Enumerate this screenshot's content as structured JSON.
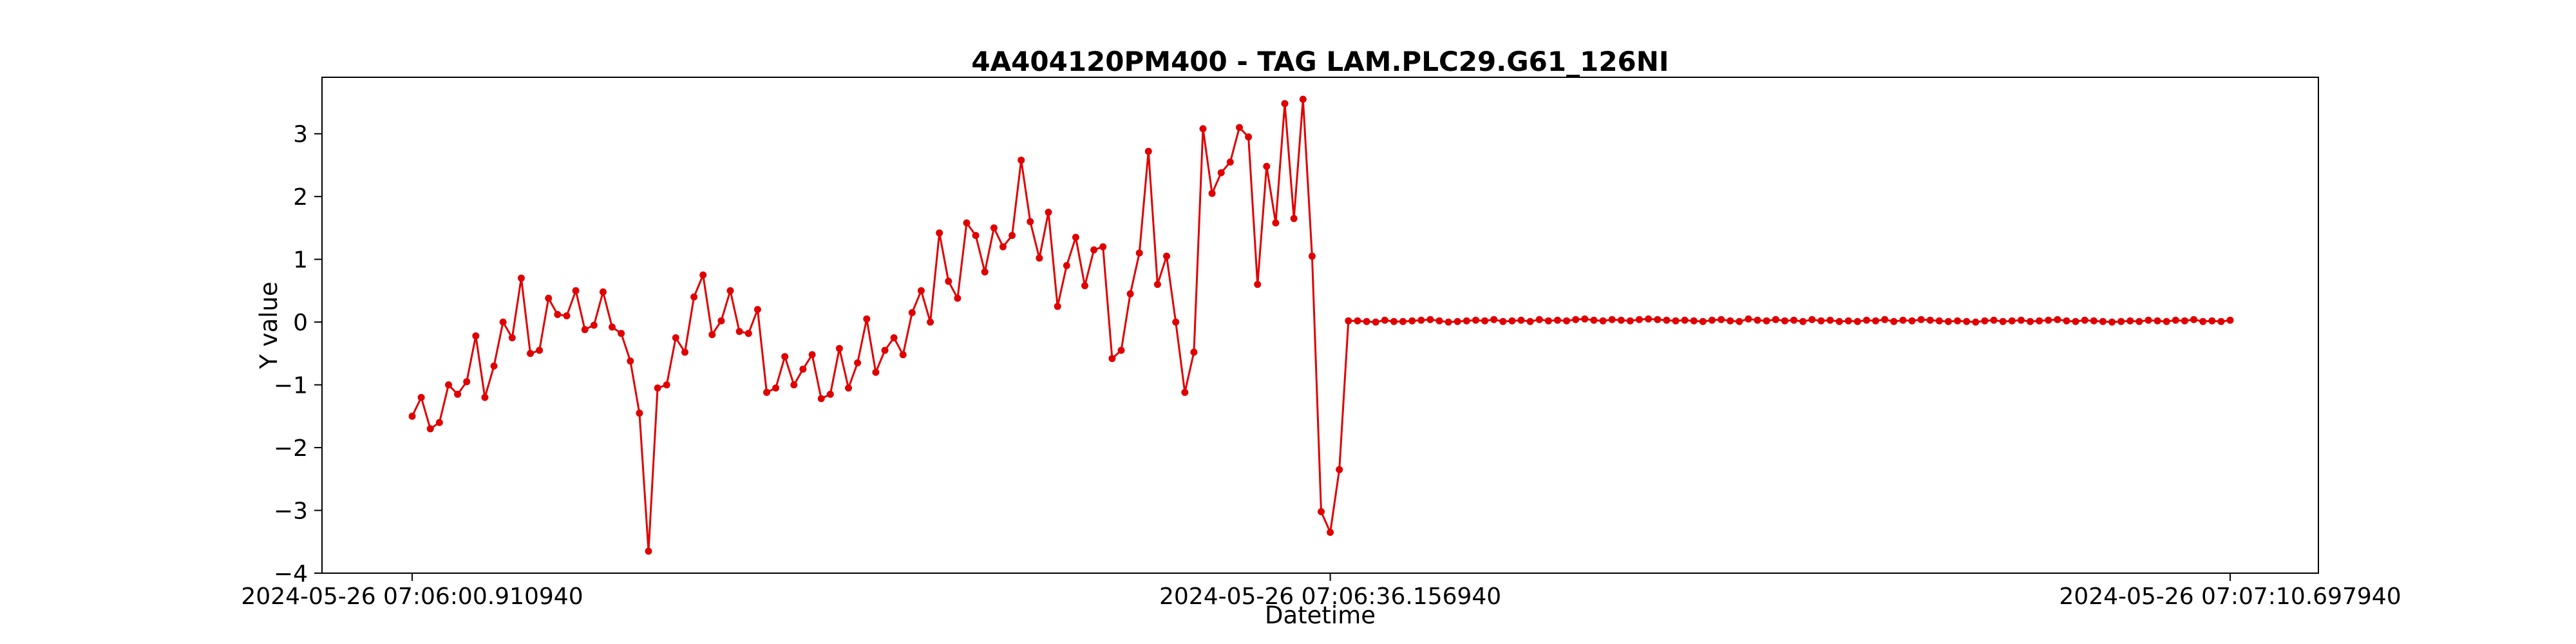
{
  "chart_data": {
    "type": "line",
    "title": "4A404120PM400 - TAG LAM.PLC29.G61_126NI",
    "xlabel": "Datetime",
    "ylabel": "Y value",
    "x_tick_labels": [
      "2024-05-26 07:06:00.910940",
      "2024-05-26 07:06:36.156940",
      "2024-05-26 07:07:10.697940"
    ],
    "y_ticks": [
      -4,
      -3,
      -2,
      -1,
      0,
      1,
      2,
      3
    ],
    "ylim": [
      -4,
      3.9
    ],
    "grid": false,
    "color": "#e00000",
    "series": [
      {
        "values": [
          -1.5,
          -1.2,
          -1.7,
          -1.6,
          -1.0,
          -1.15,
          -0.95,
          -0.22,
          -1.2,
          -0.7,
          0.0,
          -0.25,
          0.7,
          -0.5,
          -0.45,
          0.38,
          0.12,
          0.1,
          0.5,
          -0.12,
          -0.05,
          0.48,
          -0.08,
          -0.18,
          -0.62,
          -1.45,
          -3.65,
          -1.05,
          -1.0,
          -0.25,
          -0.48,
          0.4,
          0.75,
          -0.2,
          0.02,
          0.5,
          -0.15,
          -0.18,
          0.2,
          -1.12,
          -1.05,
          -0.55,
          -1.0,
          -0.75,
          -0.52,
          -1.22,
          -1.15,
          -0.42,
          -1.05,
          -0.65,
          0.05,
          -0.8,
          -0.45,
          -0.25,
          -0.52,
          0.15,
          0.5,
          0.0,
          1.42,
          0.65,
          0.38,
          1.58,
          1.38,
          0.8,
          1.5,
          1.2,
          1.38,
          2.58,
          1.6,
          1.02,
          1.75,
          0.25,
          0.9,
          1.35,
          0.58,
          1.15,
          1.2,
          -0.58,
          -0.45,
          0.45,
          1.1,
          2.72,
          0.6,
          1.05,
          0.0,
          -1.12,
          -0.48,
          3.08,
          2.05,
          2.38,
          2.55,
          3.1,
          2.95,
          0.6,
          2.48,
          1.58,
          3.48,
          1.65,
          3.55,
          1.05,
          -3.02,
          -3.35,
          -2.35,
          0.02,
          0.02,
          0.01,
          0.0,
          0.03,
          0.01,
          0.01,
          0.02,
          0.03,
          0.04,
          0.02,
          0.0,
          0.01,
          0.02,
          0.03,
          0.02,
          0.04,
          0.01,
          0.02,
          0.03,
          0.01,
          0.04,
          0.02,
          0.03,
          0.02,
          0.04,
          0.05,
          0.03,
          0.02,
          0.04,
          0.03,
          0.02,
          0.04,
          0.05,
          0.04,
          0.03,
          0.02,
          0.03,
          0.02,
          0.01,
          0.03,
          0.04,
          0.02,
          0.01,
          0.05,
          0.03,
          0.02,
          0.04,
          0.02,
          0.03,
          0.01,
          0.04,
          0.02,
          0.03,
          0.01,
          0.02,
          0.01,
          0.03,
          0.02,
          0.04,
          0.01,
          0.03,
          0.02,
          0.04,
          0.03,
          0.02,
          0.01,
          0.02,
          0.01,
          0.0,
          0.02,
          0.03,
          0.01,
          0.02,
          0.03,
          0.01,
          0.02,
          0.03,
          0.04,
          0.02,
          0.01,
          0.03,
          0.02,
          0.01,
          0.0,
          0.01,
          0.02,
          0.01,
          0.03,
          0.02,
          0.01,
          0.03,
          0.02,
          0.04,
          0.01,
          0.02,
          0.01,
          0.03
        ]
      }
    ]
  }
}
